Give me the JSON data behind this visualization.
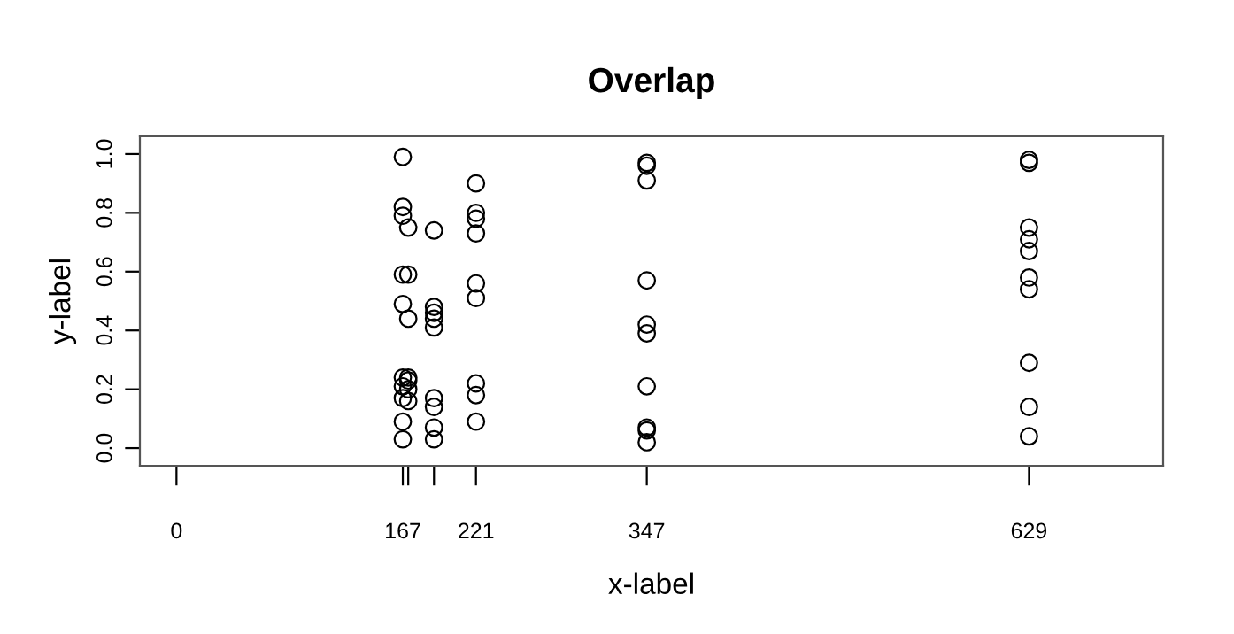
{
  "chart_data": {
    "type": "scatter",
    "title": "Overlap",
    "xlabel": "x-label",
    "ylabel": "y-label",
    "series": [
      {
        "color": "#000000",
        "x": [
          167,
          167,
          167,
          167,
          167,
          167,
          167,
          167,
          167,
          167,
          171,
          171,
          171,
          171,
          171,
          171,
          171,
          190,
          190,
          190,
          190,
          190,
          190,
          190,
          190,
          190,
          221,
          221,
          221,
          221,
          221,
          221,
          221,
          221,
          221,
          347,
          347,
          347,
          347,
          347,
          347,
          347,
          347,
          347,
          347,
          629,
          629,
          629,
          629,
          629,
          629,
          629,
          629,
          629,
          629
        ],
        "values": [
          0.99,
          0.82,
          0.79,
          0.59,
          0.49,
          0.24,
          0.21,
          0.17,
          0.09,
          0.03,
          0.75,
          0.59,
          0.44,
          0.24,
          0.23,
          0.2,
          0.16,
          0.74,
          0.48,
          0.46,
          0.44,
          0.41,
          0.17,
          0.14,
          0.07,
          0.03,
          0.9,
          0.8,
          0.78,
          0.73,
          0.56,
          0.51,
          0.22,
          0.18,
          0.09,
          0.97,
          0.96,
          0.91,
          0.57,
          0.42,
          0.39,
          0.21,
          0.07,
          0.06,
          0.02,
          0.98,
          0.97,
          0.75,
          0.71,
          0.67,
          0.58,
          0.54,
          0.29,
          0.14,
          0.04
        ]
      }
    ],
    "xlim": [
      -27,
      728
    ],
    "ylim": [
      -0.06,
      1.06
    ],
    "xticks": [
      0,
      167,
      {
        "value": 171,
        "label": null
      },
      {
        "value": 190,
        "label": null
      },
      221,
      347,
      629
    ],
    "yticks": [
      {
        "value": 0,
        "label": "0.0"
      },
      0.2,
      0.4,
      0.6,
      0.8,
      {
        "value": 1,
        "label": "1.0"
      }
    ],
    "marker": "circle",
    "grid": false,
    "legend": false
  }
}
